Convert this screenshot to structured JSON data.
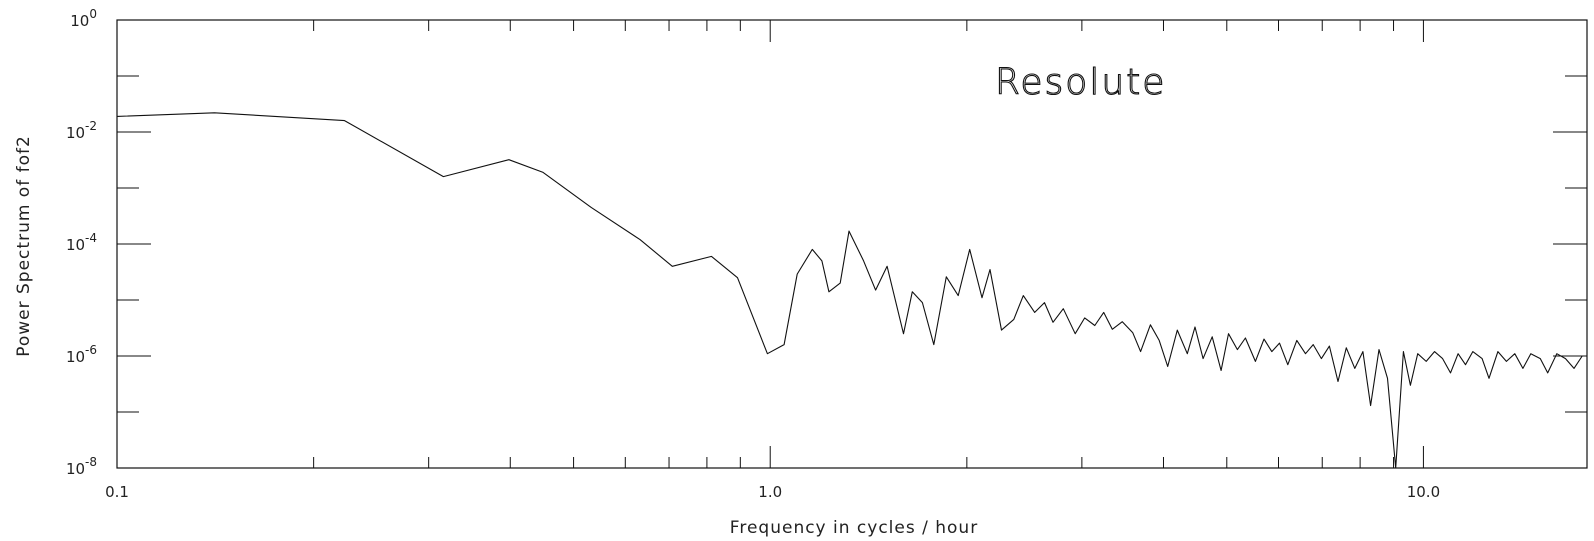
{
  "chart_data": {
    "type": "line",
    "title": "",
    "annotation": "Resolute",
    "xlabel": "Frequency in cycles / hour",
    "ylabel": "Power Spectrum of fof2",
    "x_scale": "log",
    "y_scale": "log",
    "xlim": [
      0.1,
      17.8
    ],
    "ylim": [
      1e-08,
      1
    ],
    "x_ticks": [
      0.1,
      1.0,
      10.0
    ],
    "x_tick_labels": [
      "0.1",
      "1.0",
      "10.0"
    ],
    "y_ticks": [
      1,
      0.01,
      0.0001,
      1e-06,
      1e-08
    ],
    "y_tick_labels": [
      {
        "base": "10",
        "exp": "0"
      },
      {
        "base": "10",
        "exp": "-2"
      },
      {
        "base": "10",
        "exp": "-4"
      },
      {
        "base": "10",
        "exp": "-6"
      },
      {
        "base": "10",
        "exp": "-8"
      }
    ],
    "grid": false,
    "series": [
      {
        "color": "#111111",
        "x": [
          0.1,
          0.141,
          0.223,
          0.316,
          0.398,
          0.449,
          0.532,
          0.632,
          0.708,
          0.813,
          0.891,
          0.99,
          1.05,
          1.1,
          1.16,
          1.2,
          1.23,
          1.28,
          1.32,
          1.39,
          1.45,
          1.51,
          1.6,
          1.65,
          1.71,
          1.78,
          1.86,
          1.94,
          2.02,
          2.11,
          2.17,
          2.26,
          2.36,
          2.44,
          2.54,
          2.63,
          2.71,
          2.81,
          2.93,
          3.03,
          3.14,
          3.24,
          3.34,
          3.46,
          3.59,
          3.69,
          3.82,
          3.94,
          4.06,
          4.2,
          4.35,
          4.47,
          4.6,
          4.75,
          4.9,
          5.03,
          5.19,
          5.34,
          5.53,
          5.7,
          5.86,
          6.02,
          6.2,
          6.4,
          6.6,
          6.78,
          6.98,
          7.18,
          7.4,
          7.62,
          7.85,
          8.08,
          8.3,
          8.55,
          8.81,
          9.07,
          9.32,
          9.55,
          9.8,
          10.1,
          10.4,
          10.7,
          11.0,
          11.3,
          11.6,
          11.9,
          12.3,
          12.6,
          13.0,
          13.4,
          13.8,
          14.2,
          14.6,
          15.1,
          15.5,
          16.0,
          16.5,
          17.0,
          17.5
        ],
        "y": [
          0.019,
          0.022,
          0.016,
          0.0016,
          0.0032,
          0.0019,
          0.00045,
          0.00012,
          4e-05,
          6e-05,
          2.5e-05,
          1.1e-06,
          1.6e-06,
          2.9e-05,
          8e-05,
          5e-05,
          1.4e-05,
          2e-05,
          0.00017,
          5e-05,
          1.5e-05,
          4e-05,
          2.5e-06,
          1.4e-05,
          9e-06,
          1.6e-06,
          2.6e-05,
          1.2e-05,
          8e-05,
          1.1e-05,
          3.5e-05,
          2.9e-06,
          4.5e-06,
          1.2e-05,
          6e-06,
          9e-06,
          4e-06,
          7e-06,
          2.5e-06,
          4.8e-06,
          3.5e-06,
          6e-06,
          3e-06,
          4.1e-06,
          2.6e-06,
          1.2e-06,
          3.6e-06,
          1.9e-06,
          6.5e-07,
          2.9e-06,
          1.1e-06,
          3.3e-06,
          9e-07,
          2.2e-06,
          5.5e-07,
          2.5e-06,
          1.3e-06,
          2.1e-06,
          8e-07,
          2e-06,
          1.2e-06,
          1.7e-06,
          7e-07,
          1.9e-06,
          1.1e-06,
          1.6e-06,
          9e-07,
          1.5e-06,
          3.5e-07,
          1.4e-06,
          6e-07,
          1.2e-06,
          1.3e-07,
          1.3e-06,
          4e-07,
          1e-08,
          1.2e-06,
          3e-07,
          1.1e-06,
          8e-07,
          1.2e-06,
          9e-07,
          5e-07,
          1.1e-06,
          7e-07,
          1.2e-06,
          9e-07,
          4e-07,
          1.2e-06,
          8e-07,
          1.1e-06,
          6e-07,
          1.1e-06,
          9e-07,
          5e-07,
          1.1e-06,
          9e-07,
          6e-07,
          1e-06
        ]
      }
    ]
  }
}
